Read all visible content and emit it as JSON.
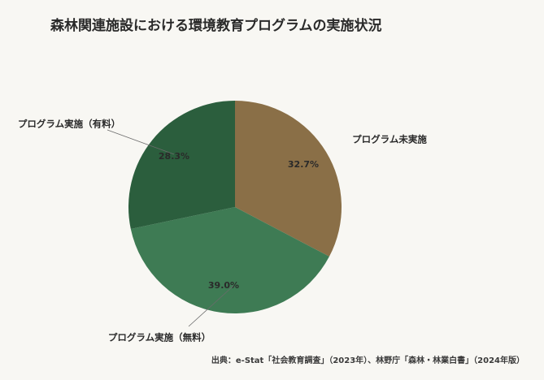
{
  "chart_data": {
    "type": "pie",
    "title": "森林関連施設における環境教育プログラムの実施状況",
    "slices": [
      {
        "label": "プログラム未実施",
        "value": 32.7,
        "value_label": "32.7%",
        "color": "#8a6f47"
      },
      {
        "label": "プログラム実施（無料）",
        "value": 39.0,
        "value_label": "39.0%",
        "color": "#3e7b54"
      },
      {
        "label": "プログラム実施（有料）",
        "value": 28.3,
        "value_label": "28.3%",
        "color": "#2b5e3d"
      }
    ],
    "start_angle_deg": 0,
    "direction": "clockwise"
  },
  "source": "出典：e-Stat「社会教育調査」（2023年）、林野庁「森林・林業白書」（2024年版）"
}
